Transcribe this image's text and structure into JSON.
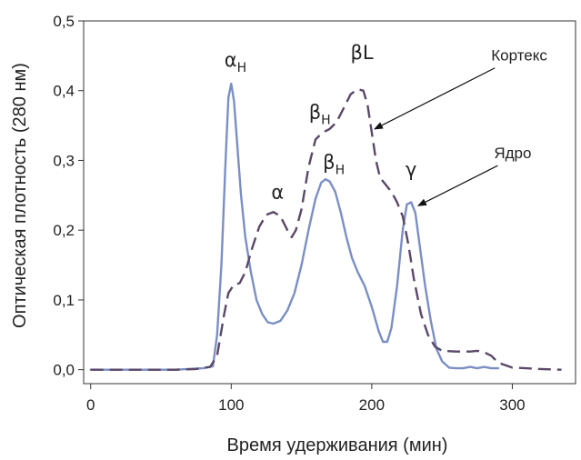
{
  "chart_data": {
    "type": "line",
    "xlabel": "Время удерживания (мин)",
    "ylabel": "Оптическая плотность (280 нм)",
    "xlim": [
      -5,
      345
    ],
    "ylim": [
      -0.02,
      0.5
    ],
    "xticks": [
      0,
      100,
      200,
      300
    ],
    "xtick_labels": [
      "0",
      "100",
      "200",
      "300"
    ],
    "yticks": [
      0,
      0.1,
      0.2,
      0.3,
      0.4,
      0.5
    ],
    "ytick_labels": [
      "0,0",
      "0,1",
      "0,2",
      "0,3",
      "0,4",
      "0,5"
    ],
    "series": [
      {
        "name": "Ядро",
        "style": "solid",
        "color": "#7b8fc4",
        "points": [
          [
            0,
            0
          ],
          [
            20,
            0
          ],
          [
            40,
            0
          ],
          [
            60,
            0
          ],
          [
            80,
            0.002
          ],
          [
            87,
            0.005
          ],
          [
            90,
            0.05
          ],
          [
            93,
            0.15
          ],
          [
            96,
            0.3
          ],
          [
            98,
            0.39
          ],
          [
            100,
            0.41
          ],
          [
            102,
            0.385
          ],
          [
            104,
            0.33
          ],
          [
            107,
            0.25
          ],
          [
            110,
            0.19
          ],
          [
            114,
            0.14
          ],
          [
            118,
            0.1
          ],
          [
            122,
            0.08
          ],
          [
            126,
            0.068
          ],
          [
            130,
            0.066
          ],
          [
            135,
            0.07
          ],
          [
            140,
            0.085
          ],
          [
            145,
            0.11
          ],
          [
            150,
            0.15
          ],
          [
            155,
            0.2
          ],
          [
            160,
            0.245
          ],
          [
            164,
            0.268
          ],
          [
            167,
            0.273
          ],
          [
            170,
            0.27
          ],
          [
            174,
            0.255
          ],
          [
            178,
            0.225
          ],
          [
            182,
            0.19
          ],
          [
            186,
            0.16
          ],
          [
            190,
            0.14
          ],
          [
            195,
            0.12
          ],
          [
            200,
            0.09
          ],
          [
            205,
            0.055
          ],
          [
            208,
            0.04
          ],
          [
            211,
            0.04
          ],
          [
            214,
            0.06
          ],
          [
            218,
            0.12
          ],
          [
            222,
            0.2
          ],
          [
            225,
            0.237
          ],
          [
            228,
            0.24
          ],
          [
            231,
            0.225
          ],
          [
            234,
            0.18
          ],
          [
            238,
            0.12
          ],
          [
            242,
            0.07
          ],
          [
            246,
            0.03
          ],
          [
            250,
            0.012
          ],
          [
            255,
            0.003
          ],
          [
            260,
            0.002
          ],
          [
            265,
            0.002
          ],
          [
            270,
            0.004
          ],
          [
            275,
            0.002
          ],
          [
            280,
            0.004
          ],
          [
            285,
            0.002
          ],
          [
            290,
            0.002
          ]
        ]
      },
      {
        "name": "Кортекс",
        "style": "dashed",
        "color": "#5a4868",
        "points": [
          [
            0,
            0
          ],
          [
            20,
            0
          ],
          [
            40,
            0
          ],
          [
            60,
            0
          ],
          [
            75,
            0.001
          ],
          [
            85,
            0.004
          ],
          [
            90,
            0.02
          ],
          [
            95,
            0.08
          ],
          [
            98,
            0.11
          ],
          [
            102,
            0.122
          ],
          [
            106,
            0.124
          ],
          [
            110,
            0.14
          ],
          [
            115,
            0.175
          ],
          [
            120,
            0.205
          ],
          [
            125,
            0.222
          ],
          [
            130,
            0.226
          ],
          [
            135,
            0.22
          ],
          [
            140,
            0.2
          ],
          [
            143,
            0.19
          ],
          [
            146,
            0.2
          ],
          [
            150,
            0.23
          ],
          [
            155,
            0.29
          ],
          [
            160,
            0.33
          ],
          [
            165,
            0.34
          ],
          [
            170,
            0.345
          ],
          [
            175,
            0.355
          ],
          [
            180,
            0.375
          ],
          [
            185,
            0.395
          ],
          [
            190,
            0.402
          ],
          [
            194,
            0.4
          ],
          [
            197,
            0.38
          ],
          [
            200,
            0.34
          ],
          [
            203,
            0.3
          ],
          [
            206,
            0.275
          ],
          [
            210,
            0.265
          ],
          [
            214,
            0.255
          ],
          [
            218,
            0.24
          ],
          [
            222,
            0.22
          ],
          [
            226,
            0.18
          ],
          [
            230,
            0.13
          ],
          [
            235,
            0.08
          ],
          [
            240,
            0.05
          ],
          [
            245,
            0.033
          ],
          [
            250,
            0.027
          ],
          [
            260,
            0.026
          ],
          [
            270,
            0.026
          ],
          [
            275,
            0.027
          ],
          [
            280,
            0.025
          ],
          [
            285,
            0.02
          ],
          [
            290,
            0.01
          ],
          [
            300,
            0.003
          ],
          [
            310,
            0.002
          ],
          [
            320,
            0.001
          ],
          [
            335,
            0
          ]
        ]
      }
    ],
    "annotations": [
      {
        "base": "α",
        "sub": "H",
        "x": 103,
        "y": 0.435
      },
      {
        "base": "α",
        "sub": "",
        "x": 133,
        "y": 0.245
      },
      {
        "base": "β",
        "sub": "H",
        "x": 163,
        "y": 0.36
      },
      {
        "base": "β",
        "sub": "H",
        "x": 173,
        "y": 0.288
      },
      {
        "base": "βL",
        "sub": "",
        "x": 193,
        "y": 0.445
      },
      {
        "base": "γ",
        "sub": "",
        "x": 228,
        "y": 0.278
      }
    ],
    "labels": [
      {
        "text": "Кортекс",
        "x": 285,
        "y": 0.443,
        "arrow_to": [
          202,
          0.345
        ]
      },
      {
        "text": "Ядро",
        "x": 287,
        "y": 0.303,
        "arrow_to": [
          233,
          0.235
        ]
      }
    ]
  }
}
